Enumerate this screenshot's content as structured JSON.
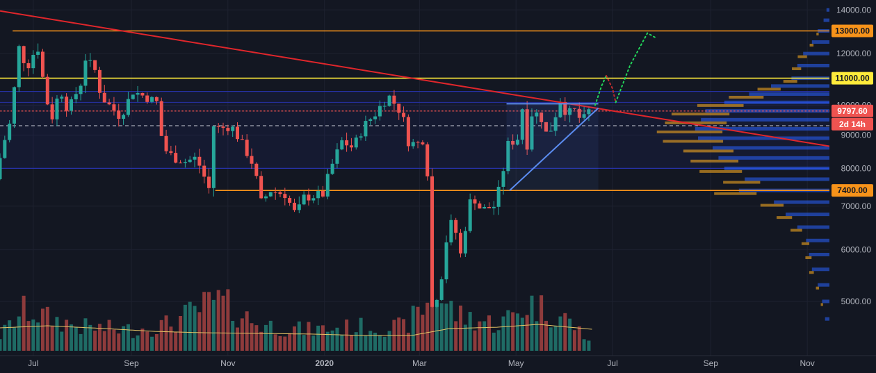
{
  "colors": {
    "background": "#131722",
    "grid": "#1e2230",
    "up": "#26a69a",
    "down": "#ef5350",
    "vol_up": "#1f6b65",
    "vol_down": "#8e3b3c",
    "trendline": "#e0262b",
    "support_orange": "#f7931a",
    "resistance_yellow": "#ffeb3b",
    "channel": "#2732a8",
    "triangle": "#5b8cf0",
    "profile_blue": "#2962ff",
    "profile_orange": "#f0a520",
    "path_green": "#22d65a",
    "path_red": "#c22d2d",
    "ma": "#e6c465"
  },
  "chart_data": {
    "type": "candlestick",
    "title": "",
    "y_scale": "log",
    "ylim": [
      4200,
      14500
    ],
    "y_ticks": [
      {
        "value": 14000,
        "label": "14000.00"
      },
      {
        "value": 12000,
        "label": "12000.00"
      },
      {
        "value": 10000,
        "label": "10000.00"
      },
      {
        "value": 9000,
        "label": "9000.00"
      },
      {
        "value": 8000,
        "label": "8000.00"
      },
      {
        "value": 7000,
        "label": "7000.00"
      },
      {
        "value": 6000,
        "label": "6000.00"
      },
      {
        "value": 5000,
        "label": "5000.00"
      }
    ],
    "x_range": [
      "2019-06-10",
      "2020-11-15"
    ],
    "x_ticks": [
      {
        "date": "2019-07-01",
        "label": "Jul",
        "bold": false
      },
      {
        "date": "2019-09-01",
        "label": "Sep",
        "bold": false
      },
      {
        "date": "2019-11-01",
        "label": "Nov",
        "bold": false
      },
      {
        "date": "2020-01-01",
        "label": "2020",
        "bold": true
      },
      {
        "date": "2020-03-01",
        "label": "Mar",
        "bold": false
      },
      {
        "date": "2020-05-01",
        "label": "May",
        "bold": false
      },
      {
        "date": "2020-07-01",
        "label": "Jul",
        "bold": false
      },
      {
        "date": "2020-09-01",
        "label": "Sep",
        "bold": false
      },
      {
        "date": "2020-11-01",
        "label": "Nov",
        "bold": false
      }
    ],
    "price_keypoints": [
      [
        "2019-06-10",
        7700
      ],
      [
        "2019-06-15",
        8700
      ],
      [
        "2019-06-20",
        9500
      ],
      [
        "2019-06-26",
        12800
      ],
      [
        "2019-06-29",
        11200
      ],
      [
        "2019-07-03",
        11900
      ],
      [
        "2019-07-08",
        12300
      ],
      [
        "2019-07-11",
        10400
      ],
      [
        "2019-07-16",
        9600
      ],
      [
        "2019-07-21",
        10600
      ],
      [
        "2019-07-26",
        9800
      ],
      [
        "2019-08-03",
        10800
      ],
      [
        "2019-08-06",
        11800
      ],
      [
        "2019-08-12",
        11300
      ],
      [
        "2019-08-16",
        10300
      ],
      [
        "2019-08-21",
        10000
      ],
      [
        "2019-08-28",
        9600
      ],
      [
        "2019-09-05",
        10500
      ],
      [
        "2019-09-13",
        10300
      ],
      [
        "2019-09-20",
        10100
      ],
      [
        "2019-09-24",
        8600
      ],
      [
        "2019-10-01",
        8300
      ],
      [
        "2019-10-08",
        8200
      ],
      [
        "2019-10-15",
        8300
      ],
      [
        "2019-10-23",
        7450
      ],
      [
        "2019-10-26",
        9300
      ],
      [
        "2019-10-30",
        9200
      ],
      [
        "2019-11-06",
        9300
      ],
      [
        "2019-11-12",
        8800
      ],
      [
        "2019-11-20",
        8100
      ],
      [
        "2019-11-25",
        7100
      ],
      [
        "2019-12-01",
        7400
      ],
      [
        "2019-12-10",
        7300
      ],
      [
        "2019-12-18",
        6700
      ],
      [
        "2019-12-20",
        7200
      ],
      [
        "2020-01-03",
        7300
      ],
      [
        "2020-01-08",
        8000
      ],
      [
        "2020-01-15",
        8800
      ],
      [
        "2020-01-22",
        8600
      ],
      [
        "2020-01-29",
        9300
      ],
      [
        "2020-02-05",
        9700
      ],
      [
        "2020-02-10",
        10100
      ],
      [
        "2020-02-14",
        10300
      ],
      [
        "2020-02-18",
        10000
      ],
      [
        "2020-02-22",
        9700
      ],
      [
        "2020-02-26",
        8800
      ],
      [
        "2020-03-02",
        8700
      ],
      [
        "2020-03-07",
        8900
      ],
      [
        "2020-03-09",
        7900
      ],
      [
        "2020-03-12",
        4900
      ],
      [
        "2020-03-13",
        5300
      ],
      [
        "2020-03-16",
        5000
      ],
      [
        "2020-03-21",
        6200
      ],
      [
        "2020-03-25",
        6700
      ],
      [
        "2020-03-30",
        5900
      ],
      [
        "2020-04-06",
        7300
      ],
      [
        "2020-04-12",
        6900
      ],
      [
        "2020-04-20",
        7000
      ],
      [
        "2020-04-24",
        7500
      ],
      [
        "2020-04-29",
        8700
      ],
      [
        "2020-05-05",
        8900
      ],
      [
        "2020-05-08",
        9900
      ],
      [
        "2020-05-11",
        8700
      ],
      [
        "2020-05-14",
        9700
      ],
      [
        "2020-05-19",
        9700
      ],
      [
        "2020-05-24",
        8900
      ],
      [
        "2020-05-28",
        9500
      ],
      [
        "2020-06-01",
        10200
      ],
      [
        "2020-06-05",
        9700
      ],
      [
        "2020-06-10",
        9800
      ],
      [
        "2020-06-15",
        9400
      ],
      [
        "2020-06-18",
        9797.6
      ]
    ],
    "volume_keypoints": [
      [
        "2019-06-10",
        0.25
      ],
      [
        "2019-06-26",
        0.7
      ],
      [
        "2019-07-10",
        0.55
      ],
      [
        "2019-08-01",
        0.4
      ],
      [
        "2019-09-01",
        0.35
      ],
      [
        "2019-09-25",
        0.45
      ],
      [
        "2019-10-25",
        0.85
      ],
      [
        "2019-11-20",
        0.45
      ],
      [
        "2019-12-20",
        0.35
      ],
      [
        "2020-01-20",
        0.4
      ],
      [
        "2020-02-20",
        0.4
      ],
      [
        "2020-03-12",
        0.95
      ],
      [
        "2020-03-25",
        0.6
      ],
      [
        "2020-04-20",
        0.45
      ],
      [
        "2020-05-10",
        0.8
      ],
      [
        "2020-06-01",
        0.55
      ],
      [
        "2020-06-18",
        0.15
      ]
    ],
    "volume_ma": [
      [
        "2019-06-10",
        0.33
      ],
      [
        "2019-07-10",
        0.36
      ],
      [
        "2019-08-15",
        0.32
      ],
      [
        "2019-09-15",
        0.28
      ],
      [
        "2019-10-15",
        0.26
      ],
      [
        "2019-11-20",
        0.25
      ],
      [
        "2019-12-25",
        0.24
      ],
      [
        "2020-01-25",
        0.22
      ],
      [
        "2020-02-25",
        0.22
      ],
      [
        "2020-03-20",
        0.32
      ],
      [
        "2020-04-20",
        0.34
      ],
      [
        "2020-05-15",
        0.38
      ],
      [
        "2020-06-18",
        0.31
      ]
    ],
    "horizontal_levels": [
      {
        "name": "resistance-13000",
        "value": 13000,
        "color": "support_orange",
        "label": "13000.00",
        "from": "2019-06-18"
      },
      {
        "name": "resistance-11000",
        "value": 11000,
        "color": "resistance_yellow",
        "label": "11000.00",
        "from": "2019-06-10"
      },
      {
        "name": "support-7400",
        "value": 7400,
        "color": "support_orange",
        "label": "7400.00",
        "from": "2019-10-24"
      }
    ],
    "channel": {
      "from": "2019-06-10",
      "to": "2020-11-15",
      "top": 10500,
      "bottom": 8000
    },
    "channel_mid_top": 10100,
    "trendline": {
      "start": [
        "2019-06-10",
        13950
      ],
      "end": [
        "2020-11-15",
        8650
      ]
    },
    "triangle": {
      "top": 10050,
      "top_from": "2020-04-25",
      "top_to": "2020-06-22",
      "base_start": [
        "2020-04-27",
        7400
      ],
      "base_end": [
        "2020-06-22",
        9900
      ]
    },
    "triangle_box": {
      "from": "2020-04-25",
      "to": "2020-06-22",
      "top": 10050,
      "bottom": 7400
    },
    "projection_green_1": [
      [
        "2020-06-20",
        10000
      ],
      [
        "2020-06-24",
        10700
      ],
      [
        "2020-06-27",
        11100
      ]
    ],
    "projection_red": [
      [
        "2020-06-27",
        11100
      ],
      [
        "2020-07-01",
        10600
      ],
      [
        "2020-07-03",
        10100
      ]
    ],
    "projection_green_2": [
      [
        "2020-07-03",
        10100
      ],
      [
        "2020-07-12",
        11500
      ],
      [
        "2020-07-23",
        12900
      ],
      [
        "2020-07-28",
        12700
      ]
    ],
    "dashed_level": 9300,
    "current_price": 9797.6,
    "current_price_label": "9797.60",
    "countdown_label": "2d 14h",
    "volume_profile": [
      {
        "price": 14000,
        "blue": 0.02,
        "orange": 0.0
      },
      {
        "price": 13500,
        "blue": 0.04,
        "orange": 0.0
      },
      {
        "price": 13000,
        "blue": 0.08,
        "orange": 0.03
      },
      {
        "price": 12500,
        "blue": 0.12,
        "orange": 0.05
      },
      {
        "price": 12000,
        "blue": 0.18,
        "orange": 0.12
      },
      {
        "price": 11500,
        "blue": 0.22,
        "orange": 0.12
      },
      {
        "price": 11000,
        "blue": 0.26,
        "orange": 0.18
      },
      {
        "price": 10700,
        "blue": 0.4,
        "orange": 0.3
      },
      {
        "price": 10400,
        "blue": 0.55,
        "orange": 0.45
      },
      {
        "price": 10100,
        "blue": 0.72,
        "orange": 0.6
      },
      {
        "price": 9800,
        "blue": 0.85,
        "orange": 0.75
      },
      {
        "price": 9500,
        "blue": 0.88,
        "orange": 0.8
      },
      {
        "price": 9200,
        "blue": 0.92,
        "orange": 0.85
      },
      {
        "price": 8900,
        "blue": 0.9,
        "orange": 0.78
      },
      {
        "price": 8600,
        "blue": 0.8,
        "orange": 0.65
      },
      {
        "price": 8300,
        "blue": 0.76,
        "orange": 0.62
      },
      {
        "price": 8000,
        "blue": 0.72,
        "orange": 0.55
      },
      {
        "price": 7700,
        "blue": 0.58,
        "orange": 0.48
      },
      {
        "price": 7400,
        "blue": 0.62,
        "orange": 0.55
      },
      {
        "price": 7100,
        "blue": 0.38,
        "orange": 0.3
      },
      {
        "price": 6800,
        "blue": 0.3,
        "orange": 0.2
      },
      {
        "price": 6500,
        "blue": 0.22,
        "orange": 0.15
      },
      {
        "price": 6200,
        "blue": 0.16,
        "orange": 0.1
      },
      {
        "price": 5900,
        "blue": 0.14,
        "orange": 0.08
      },
      {
        "price": 5600,
        "blue": 0.12,
        "orange": 0.06
      },
      {
        "price": 5300,
        "blue": 0.08,
        "orange": 0.04
      },
      {
        "price": 5000,
        "blue": 0.05,
        "orange": 0.03
      },
      {
        "price": 4700,
        "blue": 0.03,
        "orange": 0.0
      }
    ]
  }
}
